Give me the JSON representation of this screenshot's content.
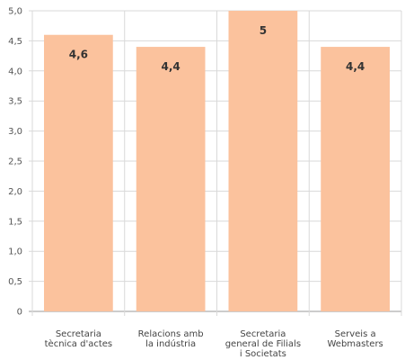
{
  "chart_data": {
    "type": "bar",
    "categories": [
      [
        "Secretaria",
        "tècnica d'actes"
      ],
      [
        "Relacions amb",
        "la indústria"
      ],
      [
        "Secretaria",
        "general de Filials",
        "i Societats"
      ],
      [
        "Serveis a",
        "Webmasters"
      ]
    ],
    "values": [
      4.6,
      4.4,
      5,
      4.4
    ],
    "data_labels": [
      "4,6",
      "4,4",
      "5",
      "4,4"
    ],
    "ylim": [
      0,
      5
    ],
    "yticks": [
      "0",
      "0,5",
      "1,0",
      "1,5",
      "2,0",
      "2,5",
      "3,0",
      "3,5",
      "4,0",
      "4,5",
      "5,0"
    ],
    "grid": true,
    "bar_color": "#fbc29d",
    "grid_color": "#d9d9d9",
    "title": "",
    "xlabel": "",
    "ylabel": ""
  }
}
